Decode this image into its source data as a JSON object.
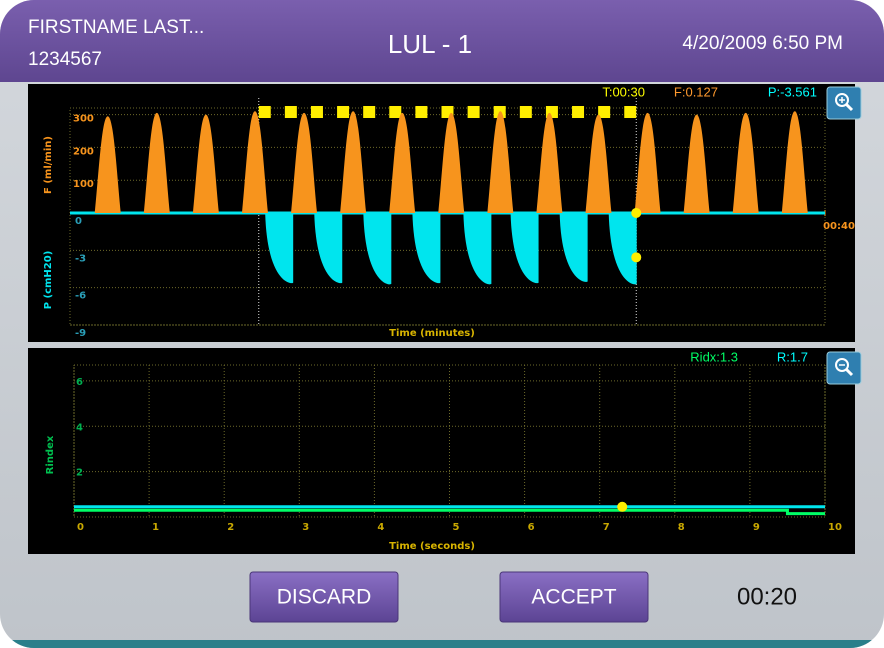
{
  "header": {
    "patient_name": "FIRSTNAME LAST...",
    "patient_id": "1234567",
    "title": "LUL - 1",
    "datetime": "4/20/2009 6:50 PM"
  },
  "chart_data": [
    {
      "type": "line",
      "x_label": "Time (minutes)",
      "xlim": [
        0,
        40
      ],
      "xticks": [
        {
          "value": 40,
          "label": "00:40"
        }
      ],
      "ylim": [
        0,
        320
      ],
      "yticks": [
        100,
        200,
        300
      ],
      "y2lim": [
        -9,
        0
      ],
      "y2ticks": [
        0,
        -3,
        -6,
        -9
      ],
      "grid": true,
      "occlusion": [
        10,
        30
      ],
      "readouts": [
        {
          "value": 30,
          "label": "T:00:30",
          "color": "#ffff00"
        },
        {
          "value": 0.127,
          "label": "F:0.127",
          "color": "#ff9a2e"
        },
        {
          "value": -3.561,
          "label": "P:-3.561",
          "color": "#00ffff"
        }
      ],
      "series": [
        {
          "name": "F (ml/min)",
          "color": "#f7941d",
          "x": [
            2.0,
            4.6,
            7.2,
            9.8,
            12.4,
            15.0,
            17.6,
            20.2,
            22.8,
            25.4,
            28.0,
            30.6,
            33.2,
            35.8,
            38.4
          ],
          "values": [
            295,
            305,
            300,
            310,
            305,
            310,
            305,
            305,
            310,
            305,
            300,
            305,
            300,
            305,
            310
          ]
        },
        {
          "name": "P (cmH20)",
          "color": "#00e5ee",
          "axis": "y2",
          "x": [
            11.4,
            14.0,
            16.6,
            19.2,
            21.9,
            24.4,
            27.0,
            29.6
          ],
          "values": [
            -5.6,
            -5.6,
            -5.7,
            -5.6,
            -5.7,
            -5.6,
            -5.5,
            -5.7
          ]
        }
      ]
    },
    {
      "type": "line",
      "x_label": "Time (seconds)",
      "y_label": "Rindex",
      "xlim": [
        0,
        10
      ],
      "xticks": [
        0,
        1,
        2,
        3,
        4,
        5,
        6,
        7,
        8,
        9,
        10
      ],
      "ylim": [
        0,
        6.7
      ],
      "yticks": [
        2,
        4,
        6
      ],
      "grid": true,
      "readouts": [
        {
          "value": 1.3,
          "label": "Ridx:1.3",
          "color": "#00ff66"
        },
        {
          "value": 1.7,
          "label": "R:1.7",
          "color": "#00ffff"
        }
      ],
      "series": [
        {
          "color": "#00e5ee",
          "x": [
            0,
            10
          ],
          "values": [
            0.45,
            0.45
          ]
        },
        {
          "color": "#00ff66",
          "x": [
            0,
            9.5,
            9.5,
            10
          ],
          "values": [
            0.3,
            0.3,
            0.15,
            0.15
          ]
        }
      ],
      "marker": {
        "x": 7.3,
        "y": 0.45
      }
    }
  ],
  "buttons": [
    "DISCARD",
    "ACCEPT"
  ],
  "timer": "00:20"
}
